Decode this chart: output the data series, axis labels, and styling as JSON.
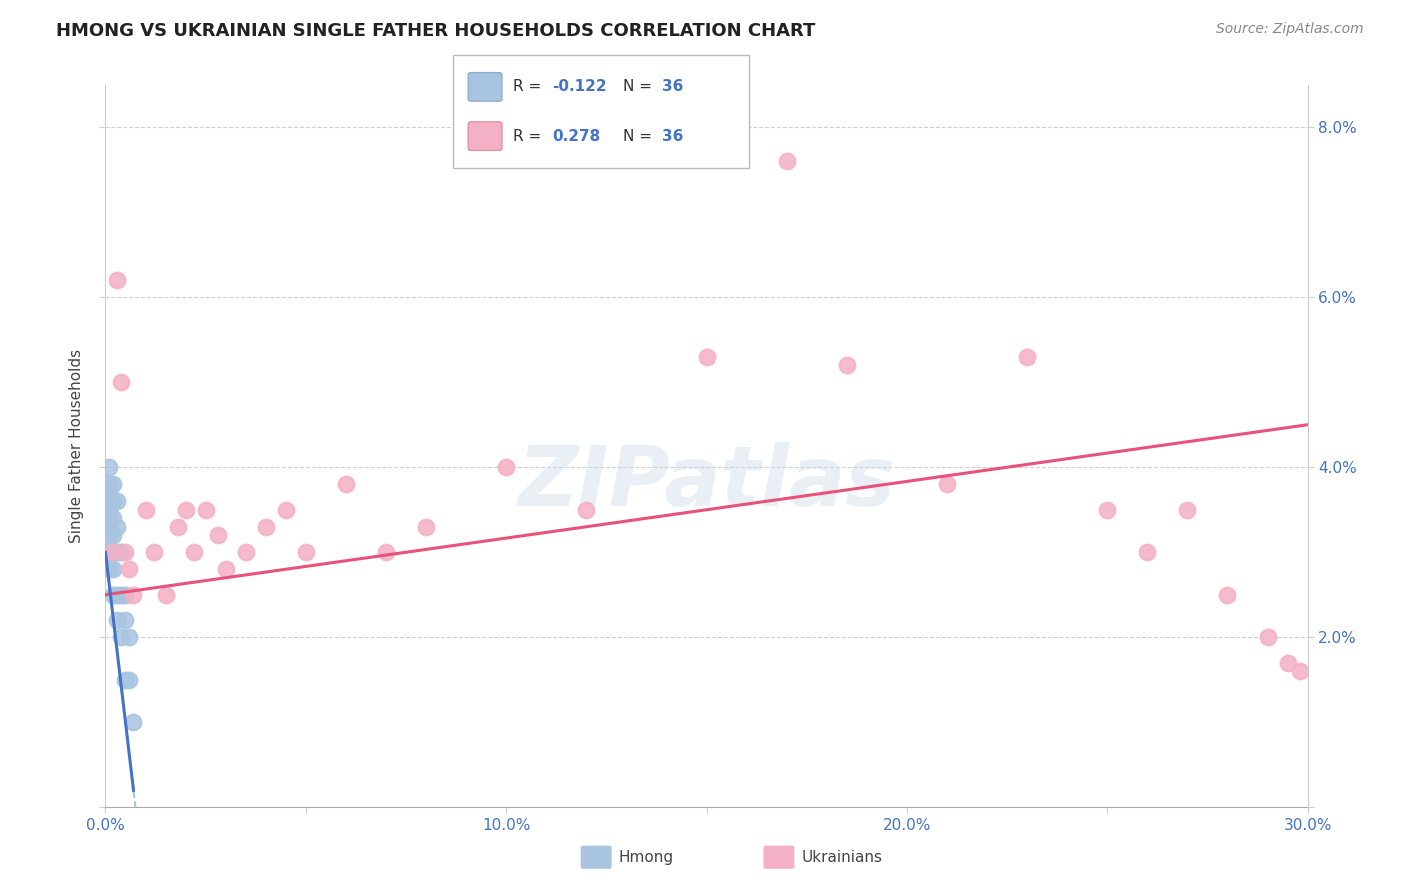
{
  "title": "HMONG VS UKRAINIAN SINGLE FATHER HOUSEHOLDS CORRELATION CHART",
  "source": "Source: ZipAtlas.com",
  "ylabel_label": "Single Father Households",
  "x_min": 0.0,
  "x_max": 0.3,
  "y_min": 0.0,
  "y_max": 0.085,
  "hmong_R": -0.122,
  "hmong_N": 36,
  "ukr_R": 0.278,
  "ukr_N": 36,
  "hmong_color": "#a8c4e0",
  "hmong_line_color": "#4472c4",
  "ukr_color": "#f4b0c4",
  "ukr_line_color": "#e8527a",
  "background_color": "#ffffff",
  "hmong_x": [
    0.0,
    0.0,
    0.0,
    0.0,
    0.0,
    0.001,
    0.001,
    0.001,
    0.001,
    0.001,
    0.001,
    0.001,
    0.001,
    0.001,
    0.001,
    0.002,
    0.002,
    0.002,
    0.002,
    0.002,
    0.002,
    0.002,
    0.003,
    0.003,
    0.003,
    0.003,
    0.003,
    0.004,
    0.004,
    0.004,
    0.005,
    0.005,
    0.005,
    0.006,
    0.006,
    0.007
  ],
  "hmong_y": [
    0.038,
    0.036,
    0.035,
    0.033,
    0.03,
    0.04,
    0.038,
    0.037,
    0.036,
    0.035,
    0.034,
    0.033,
    0.032,
    0.03,
    0.028,
    0.038,
    0.036,
    0.034,
    0.032,
    0.03,
    0.028,
    0.025,
    0.036,
    0.033,
    0.03,
    0.025,
    0.022,
    0.03,
    0.025,
    0.02,
    0.025,
    0.022,
    0.015,
    0.02,
    0.015,
    0.01
  ],
  "ukr_x": [
    0.002,
    0.003,
    0.004,
    0.005,
    0.006,
    0.007,
    0.01,
    0.012,
    0.015,
    0.018,
    0.02,
    0.022,
    0.025,
    0.028,
    0.03,
    0.035,
    0.04,
    0.045,
    0.05,
    0.06,
    0.07,
    0.08,
    0.1,
    0.12,
    0.15,
    0.17,
    0.185,
    0.21,
    0.23,
    0.25,
    0.26,
    0.27,
    0.28,
    0.29,
    0.295,
    0.298
  ],
  "ukr_y": [
    0.03,
    0.062,
    0.05,
    0.03,
    0.028,
    0.025,
    0.035,
    0.03,
    0.025,
    0.033,
    0.035,
    0.03,
    0.035,
    0.032,
    0.028,
    0.03,
    0.033,
    0.035,
    0.03,
    0.038,
    0.03,
    0.033,
    0.04,
    0.035,
    0.053,
    0.076,
    0.052,
    0.038,
    0.053,
    0.035,
    0.03,
    0.035,
    0.025,
    0.02,
    0.017,
    0.016
  ]
}
